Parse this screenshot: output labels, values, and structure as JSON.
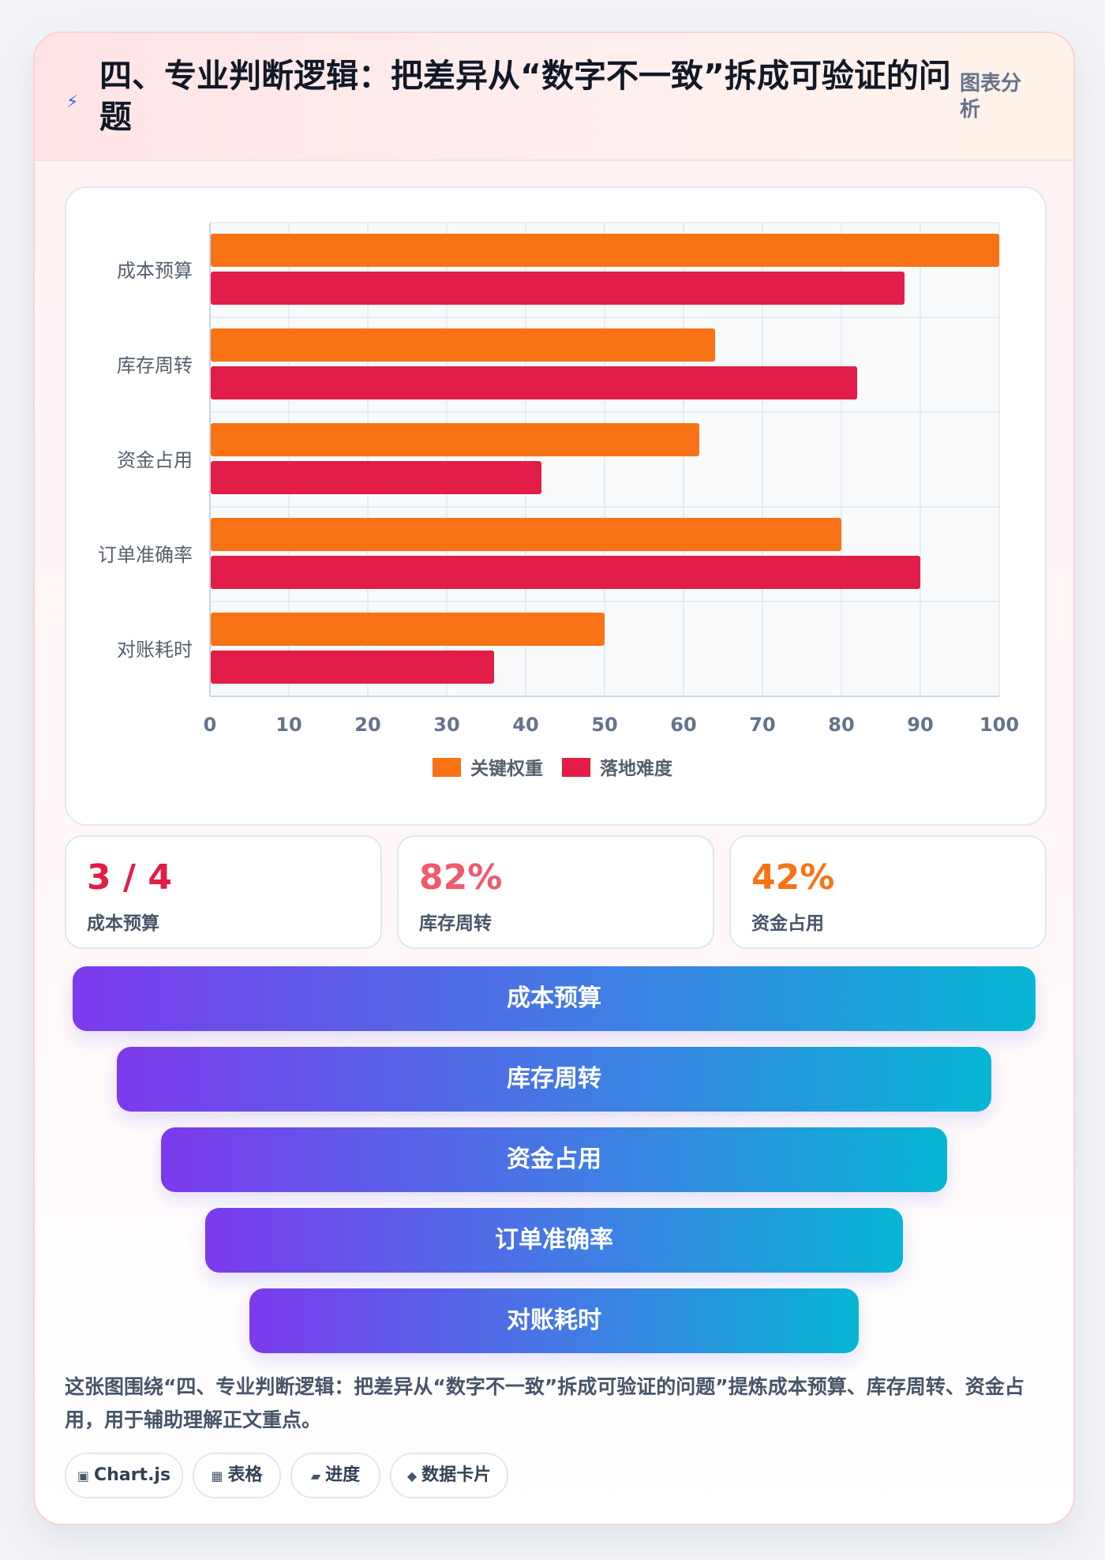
{
  "header": {
    "icon": "lightning-icon",
    "title": "四、专业判断逻辑：把差异从“数字不一致”拆成可验证的问题",
    "tag": "图表分析"
  },
  "chart_data": {
    "type": "bar",
    "orientation": "horizontal",
    "categories": [
      "成本预算",
      "库存周转",
      "资金占用",
      "订单准确率",
      "对账耗时"
    ],
    "series": [
      {
        "name": "关键权重",
        "color": "#f97316",
        "values": [
          100,
          64,
          62,
          80,
          50
        ]
      },
      {
        "name": "落地难度",
        "color": "#e11d48",
        "values": [
          88,
          82,
          42,
          90,
          36
        ]
      }
    ],
    "xlim": [
      0,
      100
    ],
    "xticks": [
      0,
      10,
      20,
      30,
      40,
      50,
      60,
      70,
      80,
      90,
      100
    ],
    "grid": true,
    "legend": "bottom-center"
  },
  "stats": [
    {
      "value": "3 / 4",
      "label": "成本预算",
      "color": "#e11d48"
    },
    {
      "value": "82%",
      "label": "库存周转",
      "color": "#f43f5e"
    },
    {
      "value": "42%",
      "label": "资金占用",
      "color": "#f97316"
    }
  ],
  "funnel": [
    "成本预算",
    "库存周转",
    "资金占用",
    "订单准确率",
    "对账耗时"
  ],
  "caption": "这张图围绕“四、专业判断逻辑：把差异从“数字不一致”拆成可验证的问题”提炼成本预算、库存周转、资金占用，用于辅助理解正文重点。",
  "chips": [
    {
      "icon": "▣",
      "label": "Chart.js"
    },
    {
      "icon": "▦",
      "label": "表格"
    },
    {
      "icon": "▰",
      "label": "进度"
    },
    {
      "icon": "◆",
      "label": "数据卡片"
    }
  ]
}
